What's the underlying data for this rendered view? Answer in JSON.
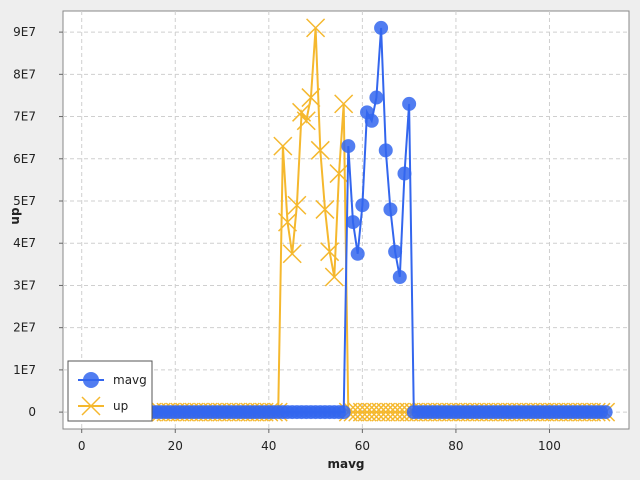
{
  "chart_data": {
    "type": "line",
    "xlabel": "mavg",
    "ylabel": "up",
    "xlim": [
      -4,
      117
    ],
    "ylim": [
      -4000000,
      95000000
    ],
    "x_ticks": [
      0,
      20,
      40,
      60,
      80,
      100
    ],
    "y_ticks": [
      {
        "value": 0,
        "label": "0"
      },
      {
        "value": 10000000,
        "label": "1E7"
      },
      {
        "value": 20000000,
        "label": "2E7"
      },
      {
        "value": 30000000,
        "label": "3E7"
      },
      {
        "value": 40000000,
        "label": "4E7"
      },
      {
        "value": 50000000,
        "label": "5E7"
      },
      {
        "value": 60000000,
        "label": "6E7"
      },
      {
        "value": 70000000,
        "label": "7E7"
      },
      {
        "value": 80000000,
        "label": "8E7"
      },
      {
        "value": 90000000,
        "label": "9E7"
      }
    ],
    "grid": true,
    "legend_position": "bottom-left",
    "series": [
      {
        "name": "mavg",
        "color": "#3366ee",
        "marker": "circle",
        "points": [
          [
            15,
            0
          ],
          [
            16,
            0
          ],
          [
            17,
            0
          ],
          [
            18,
            0
          ],
          [
            19,
            0
          ],
          [
            20,
            0
          ],
          [
            21,
            0
          ],
          [
            22,
            0
          ],
          [
            23,
            0
          ],
          [
            24,
            0
          ],
          [
            25,
            0
          ],
          [
            26,
            0
          ],
          [
            27,
            0
          ],
          [
            28,
            0
          ],
          [
            29,
            0
          ],
          [
            30,
            0
          ],
          [
            31,
            0
          ],
          [
            32,
            0
          ],
          [
            33,
            0
          ],
          [
            34,
            0
          ],
          [
            35,
            0
          ],
          [
            36,
            0
          ],
          [
            37,
            0
          ],
          [
            38,
            0
          ],
          [
            39,
            0
          ],
          [
            40,
            0
          ],
          [
            41,
            0
          ],
          [
            42,
            0
          ],
          [
            43,
            0
          ],
          [
            44,
            0
          ],
          [
            45,
            0
          ],
          [
            46,
            0
          ],
          [
            47,
            0
          ],
          [
            48,
            0
          ],
          [
            49,
            0
          ],
          [
            50,
            0
          ],
          [
            51,
            0
          ],
          [
            52,
            0
          ],
          [
            53,
            0
          ],
          [
            54,
            0
          ],
          [
            55,
            0
          ],
          [
            56,
            0
          ],
          [
            57,
            63000000
          ],
          [
            58,
            45000000
          ],
          [
            59,
            37500000
          ],
          [
            60,
            49000000
          ],
          [
            61,
            71000000
          ],
          [
            62,
            69000000
          ],
          [
            63,
            74500000
          ],
          [
            64,
            91000000
          ],
          [
            65,
            62000000
          ],
          [
            66,
            48000000
          ],
          [
            67,
            38000000
          ],
          [
            68,
            32000000
          ],
          [
            69,
            56500000
          ],
          [
            70,
            73000000
          ],
          [
            71,
            0
          ],
          [
            72,
            0
          ],
          [
            73,
            0
          ],
          [
            74,
            0
          ],
          [
            75,
            0
          ],
          [
            76,
            0
          ],
          [
            77,
            0
          ],
          [
            78,
            0
          ],
          [
            79,
            0
          ],
          [
            80,
            0
          ],
          [
            81,
            0
          ],
          [
            82,
            0
          ],
          [
            83,
            0
          ],
          [
            84,
            0
          ],
          [
            85,
            0
          ],
          [
            86,
            0
          ],
          [
            87,
            0
          ],
          [
            88,
            0
          ],
          [
            89,
            0
          ],
          [
            90,
            0
          ],
          [
            91,
            0
          ],
          [
            92,
            0
          ],
          [
            93,
            0
          ],
          [
            94,
            0
          ],
          [
            95,
            0
          ],
          [
            96,
            0
          ],
          [
            97,
            0
          ],
          [
            98,
            0
          ],
          [
            99,
            0
          ],
          [
            100,
            0
          ],
          [
            101,
            0
          ],
          [
            102,
            0
          ],
          [
            103,
            0
          ],
          [
            104,
            0
          ],
          [
            105,
            0
          ],
          [
            106,
            0
          ],
          [
            107,
            0
          ],
          [
            108,
            0
          ],
          [
            109,
            0
          ],
          [
            110,
            0
          ],
          [
            111,
            0
          ],
          [
            112,
            0
          ]
        ]
      },
      {
        "name": "up",
        "color": "#f5b82e",
        "marker": "x",
        "points": [
          [
            15,
            0
          ],
          [
            16,
            0
          ],
          [
            17,
            0
          ],
          [
            18,
            0
          ],
          [
            19,
            0
          ],
          [
            20,
            0
          ],
          [
            21,
            0
          ],
          [
            22,
            0
          ],
          [
            23,
            0
          ],
          [
            24,
            0
          ],
          [
            25,
            0
          ],
          [
            26,
            0
          ],
          [
            27,
            0
          ],
          [
            28,
            0
          ],
          [
            29,
            0
          ],
          [
            30,
            0
          ],
          [
            31,
            0
          ],
          [
            32,
            0
          ],
          [
            33,
            0
          ],
          [
            34,
            0
          ],
          [
            35,
            0
          ],
          [
            36,
            0
          ],
          [
            37,
            0
          ],
          [
            38,
            0
          ],
          [
            39,
            0
          ],
          [
            40,
            0
          ],
          [
            41,
            0
          ],
          [
            42,
            0
          ],
          [
            43,
            63000000
          ],
          [
            44,
            45000000
          ],
          [
            45,
            37500000
          ],
          [
            46,
            49000000
          ],
          [
            47,
            71000000
          ],
          [
            48,
            69000000
          ],
          [
            49,
            74500000
          ],
          [
            50,
            91000000
          ],
          [
            51,
            62000000
          ],
          [
            52,
            48000000
          ],
          [
            53,
            38000000
          ],
          [
            54,
            32000000
          ],
          [
            55,
            56500000
          ],
          [
            56,
            73000000
          ],
          [
            57,
            0
          ],
          [
            58,
            0
          ],
          [
            59,
            0
          ],
          [
            60,
            0
          ],
          [
            61,
            0
          ],
          [
            62,
            0
          ],
          [
            63,
            0
          ],
          [
            64,
            0
          ],
          [
            65,
            0
          ],
          [
            66,
            0
          ],
          [
            67,
            0
          ],
          [
            68,
            0
          ],
          [
            69,
            0
          ],
          [
            70,
            0
          ],
          [
            71,
            0
          ],
          [
            72,
            0
          ],
          [
            73,
            0
          ],
          [
            74,
            0
          ],
          [
            75,
            0
          ],
          [
            76,
            0
          ],
          [
            77,
            0
          ],
          [
            78,
            0
          ],
          [
            79,
            0
          ],
          [
            80,
            0
          ],
          [
            81,
            0
          ],
          [
            82,
            0
          ],
          [
            83,
            0
          ],
          [
            84,
            0
          ],
          [
            85,
            0
          ],
          [
            86,
            0
          ],
          [
            87,
            0
          ],
          [
            88,
            0
          ],
          [
            89,
            0
          ],
          [
            90,
            0
          ],
          [
            91,
            0
          ],
          [
            92,
            0
          ],
          [
            93,
            0
          ],
          [
            94,
            0
          ],
          [
            95,
            0
          ],
          [
            96,
            0
          ],
          [
            97,
            0
          ],
          [
            98,
            0
          ],
          [
            99,
            0
          ],
          [
            100,
            0
          ],
          [
            101,
            0
          ],
          [
            102,
            0
          ],
          [
            103,
            0
          ],
          [
            104,
            0
          ],
          [
            105,
            0
          ],
          [
            106,
            0
          ],
          [
            107,
            0
          ],
          [
            108,
            0
          ],
          [
            109,
            0
          ],
          [
            110,
            0
          ],
          [
            111,
            0
          ],
          [
            112,
            0
          ]
        ]
      }
    ]
  }
}
